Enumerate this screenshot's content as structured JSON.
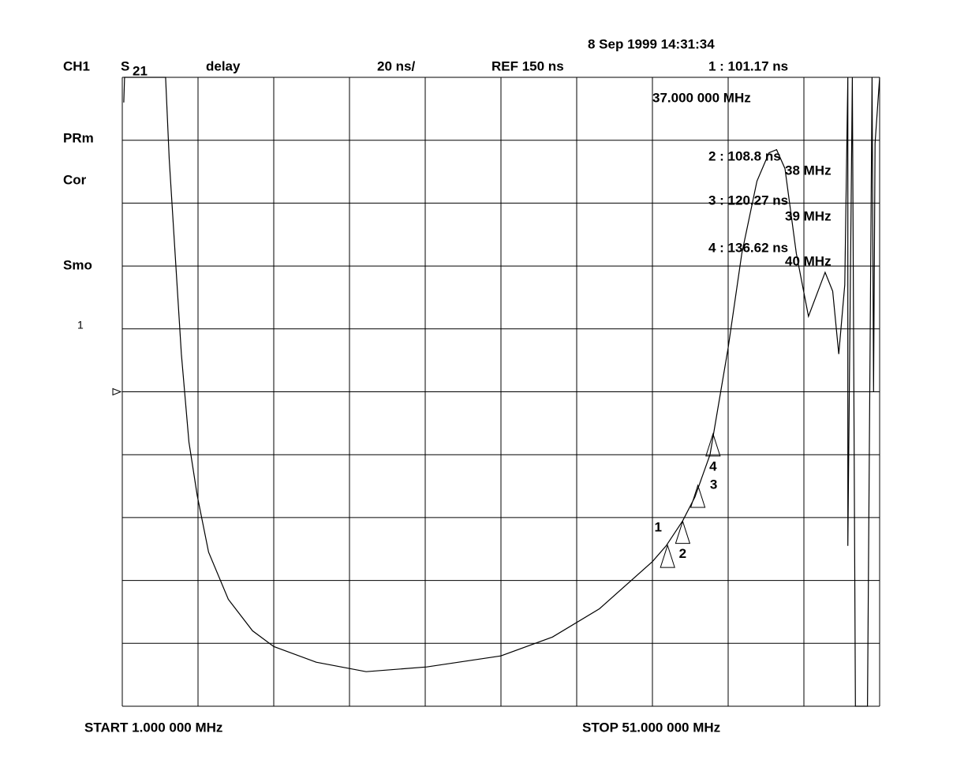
{
  "chart_data": {
    "type": "line",
    "date": "8 Sep 1999 14:31:34",
    "channel": "CH1",
    "param": "S",
    "param_sub": "21",
    "format": "delay",
    "scale": "20 ns/",
    "ref": "REF 150 ns",
    "ref_level": 150,
    "side_labels": [
      "PRm",
      "Cor",
      "Smo"
    ],
    "trace_number": "1",
    "start": "START  1.000 000 MHz",
    "stop": "STOP  51.000 000 MHz",
    "xlim": [
      1,
      51
    ],
    "ylim": [
      50,
      250
    ],
    "xticks": [
      1,
      6,
      11,
      16,
      21,
      26,
      31,
      36,
      41,
      46,
      51
    ],
    "yticks": [
      50,
      70,
      90,
      110,
      130,
      150,
      170,
      190,
      210,
      230,
      250
    ],
    "grid": true,
    "color": "#000000",
    "x": [
      1.1,
      1.15,
      3.86,
      4.1,
      4.9,
      5.4,
      5.95,
      6.7,
      8.0,
      9.6,
      11,
      13.8,
      17.1,
      21.1,
      26,
      29.4,
      32.5,
      36,
      36.9,
      38,
      38.8,
      39.8,
      41,
      41.9,
      42.9,
      43.7,
      44.2,
      44.75,
      45.5,
      46.3,
      47.4,
      47.9,
      48.3,
      48.7,
      48.9,
      48.9,
      49.2,
      49.4,
      50.2,
      50.5,
      50.6,
      50.7,
      51
    ],
    "values": [
      242,
      250,
      250,
      224,
      162,
      134,
      117,
      99,
      84,
      74,
      69,
      64,
      61,
      62.5,
      66,
      72,
      81,
      96,
      101,
      109,
      116.5,
      130,
      164,
      194,
      217,
      226,
      227,
      221,
      194,
      174,
      188,
      182,
      162,
      184,
      250,
      101,
      250,
      50,
      50,
      250,
      150,
      229,
      250
    ],
    "markers": [
      {
        "name": "1",
        "x": 37,
        "value": 101.17,
        "label": "1  : 101.17 ns",
        "freq": "37.000 000 MHz"
      },
      {
        "name": "2",
        "x": 38,
        "value": 108.8,
        "label": "2  : 108.8 ns",
        "freq": "38 MHz"
      },
      {
        "name": "3",
        "x": 39,
        "value": 120.27,
        "label": "3  : 120.27 ns",
        "freq": "39 MHz"
      },
      {
        "name": "4",
        "x": 40,
        "value": 136.62,
        "label": "4  : 136.62 ns",
        "freq": "40 MHz"
      }
    ]
  }
}
